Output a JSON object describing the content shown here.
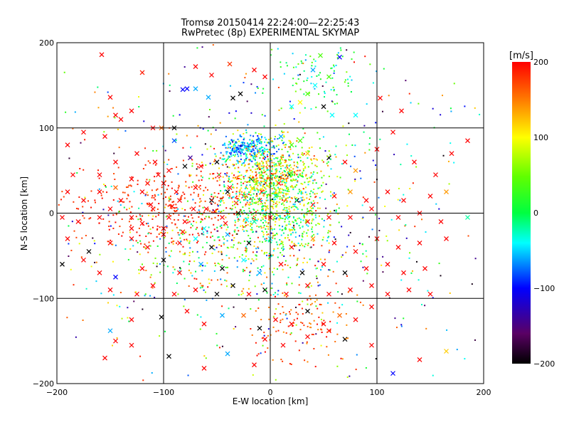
{
  "chart_data": {
    "type": "scatter",
    "title": "Tromsø 20150414 22:24:00—22:25:43",
    "subtitle": "RwPretec (8p) EXPERIMENTAL SKYMAP",
    "xlabel": "E-W location [km]",
    "ylabel": "N-S location [km]",
    "xlim": [
      -200,
      200
    ],
    "ylim": [
      -200,
      200
    ],
    "x_ticks": [
      -200,
      -100,
      0,
      100,
      200
    ],
    "y_ticks": [
      -200,
      -100,
      0,
      100,
      200
    ],
    "grid": true,
    "markers": [
      "dot",
      "x"
    ],
    "colorbar": {
      "label": "[m/s]",
      "min": -200,
      "max": 200,
      "ticks": [
        200,
        100,
        0,
        -100,
        -200
      ],
      "colormap": "black-purple-blue-cyan-green-yellow-red"
    },
    "points": [
      [
        -158,
        186,
        200,
        "x"
      ],
      [
        -150,
        136,
        200,
        "x"
      ],
      [
        -120,
        165,
        190,
        "x"
      ],
      [
        -70,
        172,
        200,
        "x"
      ],
      [
        -55,
        162,
        200,
        "x"
      ],
      [
        -82,
        145,
        -100,
        "x"
      ],
      [
        -78,
        146,
        -100,
        "x"
      ],
      [
        -70,
        146,
        -60,
        "x"
      ],
      [
        -58,
        136,
        -60,
        "x"
      ],
      [
        -35,
        135,
        -200,
        "x"
      ],
      [
        -28,
        140,
        -200,
        "x"
      ],
      [
        -38,
        175,
        180,
        "x"
      ],
      [
        -15,
        168,
        200,
        "x"
      ],
      [
        -5,
        160,
        200,
        "x"
      ],
      [
        20,
        125,
        -40,
        "x"
      ],
      [
        28,
        130,
        100,
        "x"
      ],
      [
        35,
        140,
        40,
        "x"
      ],
      [
        40,
        168,
        -60,
        "x"
      ],
      [
        55,
        160,
        40,
        "x"
      ],
      [
        42,
        150,
        -40,
        "x"
      ],
      [
        65,
        183,
        -100,
        "x"
      ],
      [
        47,
        185,
        40,
        "x"
      ],
      [
        58,
        115,
        -40,
        "x"
      ],
      [
        80,
        115,
        -40,
        "x"
      ],
      [
        103,
        135,
        200,
        "x"
      ],
      [
        123,
        120,
        200,
        "x"
      ],
      [
        50,
        125,
        -200,
        "x"
      ],
      [
        28,
        85,
        40,
        "x"
      ],
      [
        -130,
        120,
        200,
        "x"
      ],
      [
        -145,
        115,
        200,
        "x"
      ],
      [
        -190,
        80,
        200,
        "x"
      ],
      [
        -175,
        95,
        200,
        "x"
      ],
      [
        -155,
        90,
        200,
        "x"
      ],
      [
        -140,
        110,
        200,
        "x"
      ],
      [
        -110,
        100,
        200,
        "x"
      ],
      [
        -102,
        100,
        160,
        "x"
      ],
      [
        -90,
        100,
        -200,
        "x"
      ],
      [
        -90,
        85,
        -80,
        "x"
      ],
      [
        -125,
        70,
        200,
        "x"
      ],
      [
        -185,
        45,
        200,
        "x"
      ],
      [
        -160,
        45,
        200,
        "x"
      ],
      [
        -145,
        60,
        200,
        "x"
      ],
      [
        -108,
        60,
        200,
        "x"
      ],
      [
        -95,
        50,
        200,
        "x"
      ],
      [
        -75,
        65,
        -140,
        "x"
      ],
      [
        -80,
        55,
        -200,
        "x"
      ],
      [
        -65,
        55,
        200,
        "x"
      ],
      [
        -50,
        60,
        -200,
        "x"
      ],
      [
        -30,
        75,
        -60,
        "x"
      ],
      [
        -20,
        80,
        -120,
        "x"
      ],
      [
        -10,
        85,
        -40,
        "x"
      ],
      [
        10,
        90,
        -60,
        "x"
      ],
      [
        20,
        80,
        40,
        "x"
      ],
      [
        35,
        70,
        120,
        "x"
      ],
      [
        55,
        65,
        -200,
        "x"
      ],
      [
        70,
        60,
        200,
        "x"
      ],
      [
        80,
        50,
        140,
        "x"
      ],
      [
        100,
        75,
        200,
        "x"
      ],
      [
        115,
        95,
        200,
        "x"
      ],
      [
        135,
        60,
        200,
        "x"
      ],
      [
        155,
        45,
        200,
        "x"
      ],
      [
        170,
        70,
        200,
        "x"
      ],
      [
        185,
        85,
        200,
        "x"
      ],
      [
        -190,
        25,
        200,
        "x"
      ],
      [
        -175,
        15,
        200,
        "x"
      ],
      [
        -160,
        25,
        200,
        "x"
      ],
      [
        -140,
        15,
        200,
        "x"
      ],
      [
        -120,
        25,
        200,
        "x"
      ],
      [
        -100,
        35,
        200,
        "x"
      ],
      [
        -85,
        15,
        200,
        "x"
      ],
      [
        -70,
        30,
        200,
        "x"
      ],
      [
        -55,
        15,
        -200,
        "x"
      ],
      [
        -40,
        25,
        -200,
        "x"
      ],
      [
        -25,
        20,
        200,
        "x"
      ],
      [
        -10,
        15,
        200,
        "x"
      ],
      [
        5,
        20,
        -20,
        "x"
      ],
      [
        25,
        15,
        -200,
        "x"
      ],
      [
        40,
        10,
        200,
        "x"
      ],
      [
        60,
        20,
        200,
        "x"
      ],
      [
        75,
        25,
        140,
        "x"
      ],
      [
        90,
        15,
        200,
        "x"
      ],
      [
        110,
        25,
        200,
        "x"
      ],
      [
        125,
        15,
        200,
        "x"
      ],
      [
        150,
        20,
        200,
        "x"
      ],
      [
        165,
        25,
        140,
        "x"
      ],
      [
        -195,
        -5,
        200,
        "x"
      ],
      [
        -180,
        -10,
        200,
        "x"
      ],
      [
        -160,
        -5,
        200,
        "x"
      ],
      [
        -150,
        5,
        200,
        "x"
      ],
      [
        -130,
        -5,
        200,
        "x"
      ],
      [
        -110,
        5,
        200,
        "x"
      ],
      [
        -95,
        -5,
        200,
        "x"
      ],
      [
        -80,
        -10,
        200,
        "x"
      ],
      [
        -60,
        5,
        200,
        "x"
      ],
      [
        -45,
        -5,
        200,
        "x"
      ],
      [
        -30,
        0,
        -200,
        "x"
      ],
      [
        -15,
        -10,
        -20,
        "x"
      ],
      [
        0,
        -5,
        200,
        "x"
      ],
      [
        15,
        -5,
        -40,
        "x"
      ],
      [
        35,
        -10,
        200,
        "x"
      ],
      [
        55,
        -5,
        200,
        "x"
      ],
      [
        75,
        -5,
        200,
        "x"
      ],
      [
        95,
        5,
        200,
        "x"
      ],
      [
        120,
        -5,
        200,
        "x"
      ],
      [
        140,
        0,
        200,
        "x"
      ],
      [
        160,
        -10,
        200,
        "x"
      ],
      [
        185,
        -5,
        -20,
        "x"
      ],
      [
        -190,
        -30,
        200,
        "x"
      ],
      [
        -170,
        -45,
        -200,
        "x"
      ],
      [
        -150,
        -35,
        200,
        "x"
      ],
      [
        -130,
        -30,
        200,
        "x"
      ],
      [
        -115,
        -40,
        200,
        "x"
      ],
      [
        -100,
        -25,
        200,
        "x"
      ],
      [
        -85,
        -35,
        200,
        "x"
      ],
      [
        -70,
        -30,
        -40,
        "x"
      ],
      [
        -55,
        -40,
        -200,
        "x"
      ],
      [
        -40,
        -25,
        -60,
        "x"
      ],
      [
        -20,
        -35,
        -200,
        "x"
      ],
      [
        0,
        -30,
        -40,
        "x"
      ],
      [
        20,
        -40,
        200,
        "x"
      ],
      [
        40,
        -30,
        140,
        "x"
      ],
      [
        60,
        -35,
        200,
        "x"
      ],
      [
        80,
        -45,
        200,
        "x"
      ],
      [
        100,
        -30,
        200,
        "x"
      ],
      [
        120,
        -40,
        200,
        "x"
      ],
      [
        140,
        -35,
        200,
        "x"
      ],
      [
        165,
        -30,
        200,
        "x"
      ],
      [
        -195,
        -60,
        -200,
        "x"
      ],
      [
        -175,
        -55,
        200,
        "x"
      ],
      [
        -160,
        -70,
        200,
        "x"
      ],
      [
        -145,
        -75,
        -100,
        "x"
      ],
      [
        -120,
        -65,
        200,
        "x"
      ],
      [
        -100,
        -55,
        -200,
        "x"
      ],
      [
        -85,
        -70,
        200,
        "x"
      ],
      [
        -65,
        -60,
        -60,
        "x"
      ],
      [
        -45,
        -65,
        -200,
        "x"
      ],
      [
        -25,
        -55,
        -40,
        "x"
      ],
      [
        -10,
        -70,
        -60,
        "x"
      ],
      [
        10,
        -60,
        200,
        "x"
      ],
      [
        30,
        -70,
        -200,
        "x"
      ],
      [
        50,
        -60,
        200,
        "x"
      ],
      [
        70,
        -70,
        -200,
        "x"
      ],
      [
        90,
        -65,
        200,
        "x"
      ],
      [
        110,
        -60,
        200,
        "x"
      ],
      [
        125,
        -70,
        200,
        "x"
      ],
      [
        145,
        -65,
        200,
        "x"
      ],
      [
        -150,
        -90,
        200,
        "x"
      ],
      [
        -125,
        -95,
        200,
        "x"
      ],
      [
        -110,
        -85,
        200,
        "x"
      ],
      [
        -90,
        -95,
        200,
        "x"
      ],
      [
        -70,
        -90,
        200,
        "x"
      ],
      [
        -50,
        -95,
        -200,
        "x"
      ],
      [
        -35,
        -85,
        -200,
        "x"
      ],
      [
        -20,
        -95,
        200,
        "x"
      ],
      [
        -5,
        -90,
        -200,
        "x"
      ],
      [
        15,
        -95,
        200,
        "x"
      ],
      [
        35,
        -85,
        200,
        "x"
      ],
      [
        55,
        -95,
        200,
        "x"
      ],
      [
        75,
        -90,
        200,
        "x"
      ],
      [
        95,
        -85,
        200,
        "x"
      ],
      [
        110,
        -95,
        200,
        "x"
      ],
      [
        130,
        -90,
        200,
        "x"
      ],
      [
        150,
        -95,
        200,
        "x"
      ],
      [
        -130,
        -125,
        200,
        "x"
      ],
      [
        -102,
        -122,
        -200,
        "x"
      ],
      [
        -78,
        -115,
        200,
        "x"
      ],
      [
        -62,
        -130,
        200,
        "x"
      ],
      [
        -45,
        -120,
        -60,
        "x"
      ],
      [
        -25,
        -120,
        160,
        "x"
      ],
      [
        -10,
        -135,
        -200,
        "x"
      ],
      [
        5,
        -125,
        200,
        "x"
      ],
      [
        20,
        -130,
        200,
        "x"
      ],
      [
        35,
        -115,
        -200,
        "x"
      ],
      [
        50,
        -130,
        200,
        "x"
      ],
      [
        65,
        -120,
        160,
        "x"
      ],
      [
        80,
        -125,
        200,
        "x"
      ],
      [
        95,
        -110,
        200,
        "x"
      ],
      [
        -150,
        -138,
        -60,
        "x"
      ],
      [
        -145,
        -150,
        200,
        "x"
      ],
      [
        -130,
        -155,
        200,
        "x"
      ],
      [
        -95,
        -168,
        -200,
        "x"
      ],
      [
        -62,
        -182,
        200,
        "x"
      ],
      [
        -40,
        -165,
        -60,
        "x"
      ],
      [
        -15,
        -178,
        200,
        "x"
      ],
      [
        -5,
        -148,
        200,
        "x"
      ],
      [
        12,
        -155,
        200,
        "x"
      ],
      [
        35,
        -145,
        200,
        "x"
      ],
      [
        55,
        -138,
        200,
        "x"
      ],
      [
        70,
        -148,
        -200,
        "x"
      ],
      [
        95,
        -155,
        200,
        "x"
      ],
      [
        115,
        -188,
        -100,
        "x"
      ],
      [
        140,
        -172,
        200,
        "x"
      ],
      [
        165,
        -162,
        120,
        "x"
      ],
      [
        -155,
        -170,
        200,
        "x"
      ],
      [
        -130,
        40,
        200,
        "x"
      ],
      [
        -105,
        45,
        200,
        "x"
      ],
      [
        -145,
        30,
        160,
        "x"
      ],
      [
        -115,
        35,
        200,
        "x"
      ],
      [
        -88,
        25,
        200,
        "x"
      ],
      [
        -48,
        45,
        200,
        "x"
      ],
      [
        -38,
        30,
        200,
        "x"
      ],
      [
        -18,
        40,
        -200,
        "x"
      ],
      [
        -8,
        25,
        200,
        "x"
      ],
      [
        -112,
        10,
        200,
        "x"
      ],
      [
        -92,
        8,
        200,
        "x"
      ],
      [
        -72,
        5,
        200,
        "x"
      ],
      [
        -52,
        2,
        200,
        "x"
      ],
      [
        -32,
        12,
        200,
        "x"
      ],
      [
        -22,
        -8,
        -40,
        "x"
      ],
      [
        8,
        35,
        200,
        "x"
      ],
      [
        18,
        45,
        -200,
        "x"
      ],
      [
        -130,
        -18,
        200,
        "x"
      ],
      [
        -120,
        -12,
        200,
        "x"
      ],
      [
        -100,
        -18,
        200,
        "x"
      ],
      [
        -82,
        -22,
        200,
        "x"
      ],
      [
        -62,
        -18,
        -40,
        "x"
      ],
      [
        -42,
        -12,
        200,
        "x"
      ]
    ]
  }
}
